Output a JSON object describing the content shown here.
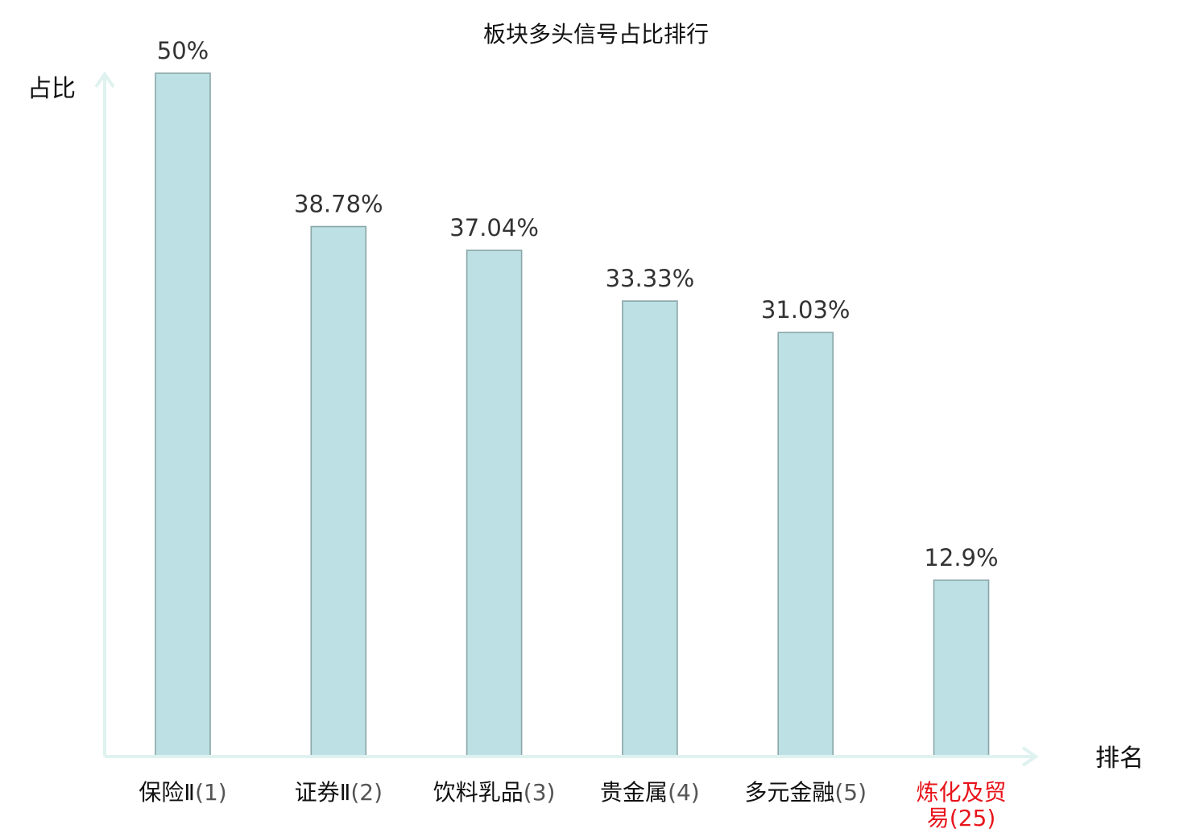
{
  "chart_data": {
    "type": "bar",
    "title": "板块多头信号占比排行",
    "ylabel": "占比",
    "xlabel": "排名",
    "ylim": [
      0,
      50
    ],
    "bar_color": "#bce0e3",
    "highlight_color": "#e8141b",
    "categories": [
      {
        "name": "保险Ⅱ",
        "rank": "(1)",
        "name_line2": "",
        "highlight": false
      },
      {
        "name": "证券Ⅱ",
        "rank": "(2)",
        "name_line2": "",
        "highlight": false
      },
      {
        "name": "饮料乳品",
        "rank": "(3)",
        "name_line2": "",
        "highlight": false
      },
      {
        "name": "贵金属",
        "rank": "(4)",
        "name_line2": "",
        "highlight": false
      },
      {
        "name": "多元金融",
        "rank": "(5)",
        "name_line2": "",
        "highlight": false
      },
      {
        "name": "炼化及贸",
        "rank": "(25)",
        "name_line2": "易",
        "highlight": true
      }
    ],
    "values": [
      50,
      38.78,
      37.04,
      33.33,
      31.03,
      12.9
    ],
    "value_labels": [
      "50%",
      "38.78%",
      "37.04%",
      "33.33%",
      "31.03%",
      "12.9%"
    ],
    "grid": false
  }
}
